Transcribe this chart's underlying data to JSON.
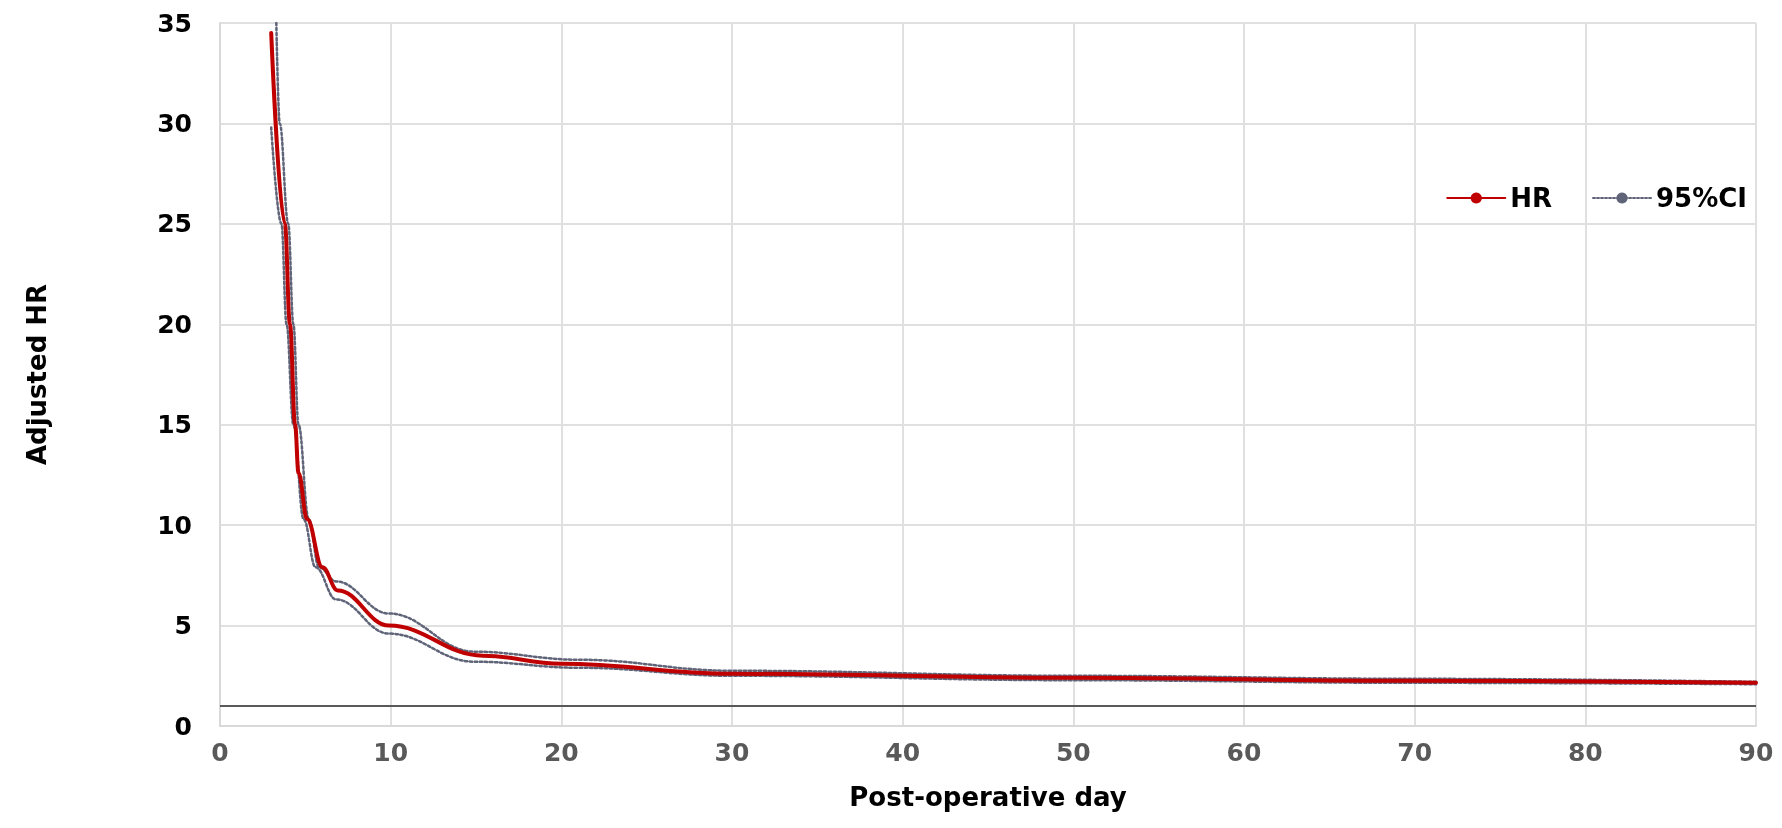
{
  "chart_data": {
    "type": "line",
    "xlabel": "Post-operative day",
    "ylabel": "Adjusted HR",
    "xlim": [
      0,
      90
    ],
    "xticks": [
      0,
      10,
      20,
      30,
      40,
      50,
      60,
      70,
      80,
      90
    ],
    "ylim": [
      0,
      35
    ],
    "yticks": [
      0,
      5,
      10,
      15,
      20,
      25,
      30,
      35
    ],
    "grid": true,
    "legend": "top right",
    "marker": "none",
    "ref_lines": [
      {
        "axis": "y",
        "value": 1,
        "label": null,
        "color": "#595959"
      }
    ],
    "series": [
      {
        "name": "HR",
        "color": "#c00000",
        "line_style": "solid",
        "x": [
          3,
          3.8,
          4.1,
          4.4,
          4.6,
          5.1,
          6,
          6.9,
          9.9,
          15.4,
          20,
          30,
          50,
          70,
          90
        ],
        "values": [
          34.5,
          25,
          20,
          15,
          12.6,
          10.3,
          7.9,
          6.75,
          5,
          3.5,
          3.1,
          2.6,
          2.4,
          2.25,
          2.15
        ]
      },
      {
        "name": "95%CI",
        "color": "#5f6478",
        "line_style": "dotted",
        "x": [
          3.3,
          3.5,
          4,
          4.3,
          4.6,
          5.2,
          5.8,
          6.8,
          9.9,
          14.9,
          21,
          30,
          50,
          70,
          90
        ],
        "values": [
          35,
          30,
          25,
          20,
          15,
          10.3,
          7.9,
          7.2,
          5.6,
          3.7,
          3.3,
          2.75,
          2.5,
          2.35,
          2.2
        ]
      },
      {
        "color": "#5f6478",
        "line_style": "dotted",
        "x": [
          3,
          3.6,
          3.9,
          4.3,
          4.9,
          5.6,
          6.8,
          9.9,
          14.9,
          21,
          30,
          50,
          70,
          90
        ],
        "values": [
          29.8,
          25,
          20,
          15,
          10.3,
          7.9,
          6.3,
          4.6,
          3.2,
          2.9,
          2.5,
          2.28,
          2.15,
          2.08
        ]
      }
    ]
  }
}
